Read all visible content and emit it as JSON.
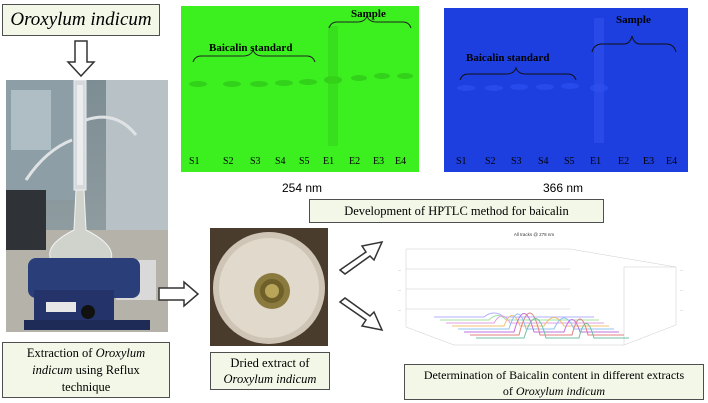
{
  "title_box": {
    "text": "Oroxylum indicum"
  },
  "extraction_box": {
    "line1_pre": "Extraction of ",
    "line1_em": "Oroxylum",
    "line2_em": "indicum",
    "line2_post": " using Reflux",
    "line3": "technique"
  },
  "dried_box": {
    "line1": "Dried extract of",
    "line2_em": "Oroxylum indicum"
  },
  "hptlc_box": {
    "text": "Development of HPTLC method for baicalin"
  },
  "determination_box": {
    "line1": "Determination of Baicalin content in different extracts",
    "line2_pre": "of ",
    "line2_em": "Oroxylum indicum"
  },
  "plate_254": {
    "wavelength": "254 nm",
    "standard_label": "Baicalin standard",
    "sample_label": "Sample",
    "lanes": [
      "S1",
      "S2",
      "S3",
      "S4",
      "S5",
      "E1",
      "E2",
      "E3",
      "E4"
    ],
    "color": "#3cf020"
  },
  "plate_366": {
    "wavelength": "366 nm",
    "standard_label": "Baicalin standard",
    "sample_label": "Sample",
    "lanes": [
      "S1",
      "S2",
      "S3",
      "S4",
      "S5",
      "E1",
      "E2",
      "E3",
      "E4"
    ],
    "color": "#1d3fe0"
  },
  "chromatogram": {
    "title": "All tracks @ 278 nm"
  }
}
